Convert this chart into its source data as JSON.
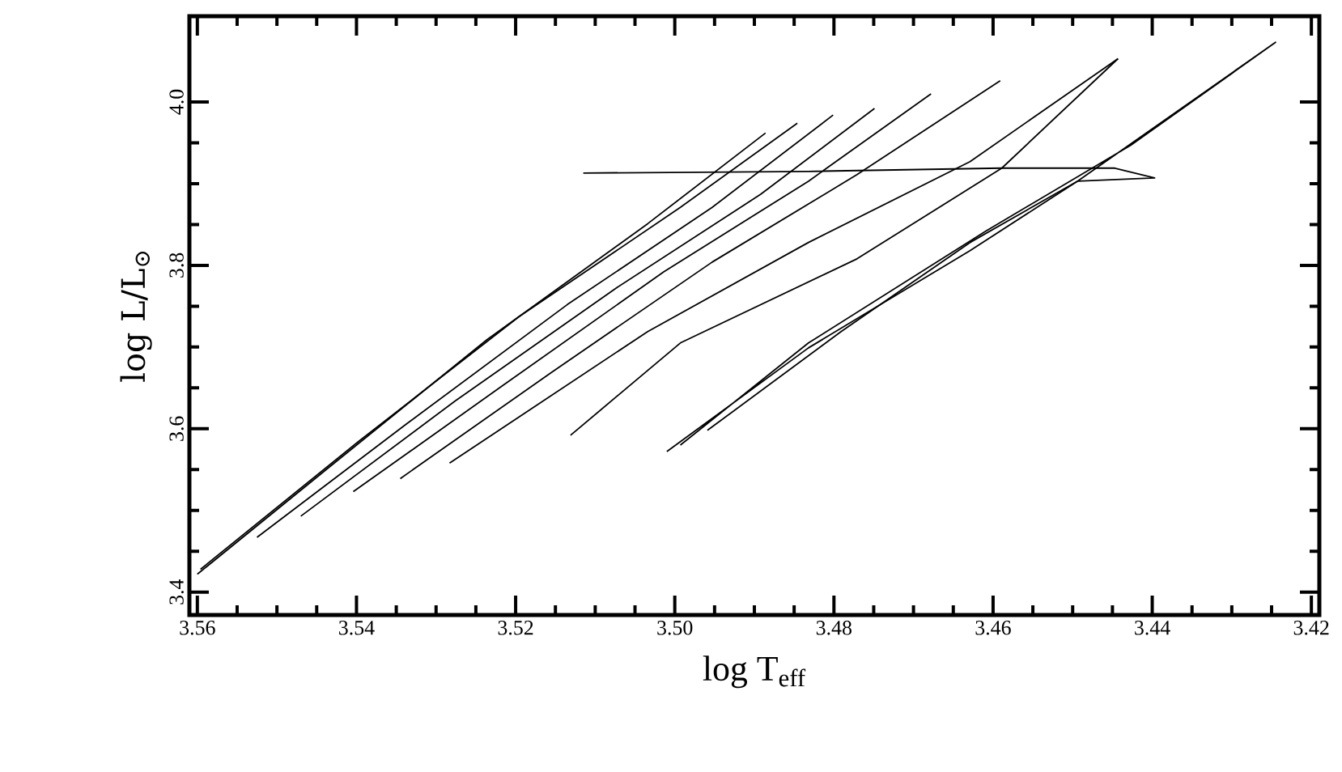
{
  "chart_data": {
    "type": "line",
    "xlabel": "log T$_{eff}$",
    "ylabel": "log L/L$_{⊙}$",
    "xlim": [
      3.561,
      3.419
    ],
    "ylim": [
      3.372,
      4.105
    ],
    "xticks": [
      {
        "value": 3.56,
        "label": "3.56"
      },
      {
        "value": 3.54,
        "label": "3.54"
      },
      {
        "value": 3.52,
        "label": "3.52"
      },
      {
        "value": 3.5,
        "label": "3.50"
      },
      {
        "value": 3.48,
        "label": "3.48"
      },
      {
        "value": 3.46,
        "label": "3.46"
      },
      {
        "value": 3.44,
        "label": "3.44"
      },
      {
        "value": 3.42,
        "label": "3.42"
      }
    ],
    "yticks": [
      {
        "value": 3.4,
        "label": "3.4"
      },
      {
        "value": 3.6,
        "label": "3.6"
      },
      {
        "value": 3.8,
        "label": "3.8"
      },
      {
        "value": 4.0,
        "label": "4.0"
      }
    ],
    "grid": false,
    "marker": "none",
    "series": [
      {
        "color": "#000000",
        "x": [
          3.56,
          3.5438,
          3.5236,
          3.5034,
          3.4886
        ],
        "values": [
          3.422,
          3.55,
          3.709,
          3.851,
          3.962
        ]
      },
      {
        "color": "#000000",
        "x": [
          3.5596,
          3.5398,
          3.5196,
          3.4993,
          3.4846
        ],
        "values": [
          3.428,
          3.584,
          3.737,
          3.871,
          3.974
        ]
      },
      {
        "color": "#000000",
        "x": [
          3.5525,
          3.5337,
          3.5135,
          3.4953,
          3.4801
        ],
        "values": [
          3.467,
          3.606,
          3.752,
          3.871,
          3.984
        ]
      },
      {
        "color": "#000000",
        "x": [
          3.547,
          3.5276,
          3.5074,
          3.4892,
          3.4749
        ],
        "values": [
          3.493,
          3.634,
          3.772,
          3.887,
          3.992
        ]
      },
      {
        "color": "#000000",
        "x": [
          3.5404,
          3.5216,
          3.5014,
          3.4832,
          3.4678
        ],
        "values": [
          3.523,
          3.653,
          3.792,
          3.903,
          4.01
        ]
      },
      {
        "color": "#000000",
        "x": [
          3.5345,
          3.5155,
          3.4953,
          3.4771,
          3.4591
        ],
        "values": [
          3.539,
          3.669,
          3.804,
          3.911,
          4.026
        ]
      },
      {
        "color": "#000000",
        "x": [
          3.5283,
          3.5034,
          3.4832,
          3.4629,
          3.4443
        ],
        "values": [
          3.558,
          3.719,
          3.828,
          3.927,
          4.053
        ]
      },
      {
        "color": "#000000",
        "x": [
          3.5131,
          3.4993,
          3.4771,
          3.4589,
          3.4443
        ],
        "values": [
          3.592,
          3.705,
          3.808,
          3.919,
          4.053
        ]
      },
      {
        "color": "#000000",
        "x": [
          3.501,
          3.4832,
          3.4629,
          3.4494,
          3.4245,
          3.4427,
          3.4609,
          3.4832,
          3.4993
        ],
        "values": [
          3.572,
          3.699,
          3.818,
          3.903,
          4.073,
          3.947,
          3.842,
          3.705,
          3.58
        ]
      },
      {
        "color": "#000000",
        "x": [
          3.4959,
          3.4791,
          3.4629,
          3.4494,
          3.4397,
          3.4447,
          3.4589,
          3.4832,
          3.5115
        ],
        "values": [
          3.598,
          3.719,
          3.828,
          3.903,
          3.907,
          3.919,
          3.919,
          3.915,
          3.913
        ]
      }
    ]
  }
}
